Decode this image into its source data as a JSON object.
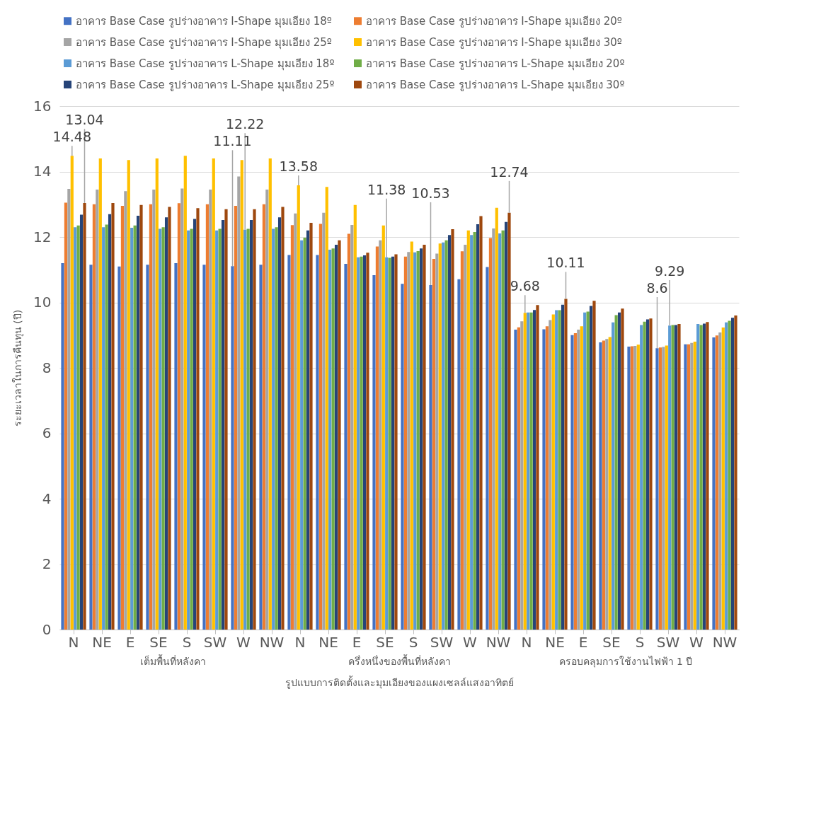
{
  "chart_data": {
    "type": "bar",
    "ylabel": "ระยะเวลาในการคืนทุน (ปี)",
    "xlabel": "รูปแบบการติดตั้งและมุมเอียงของแผงเซลล์แสงอาทิตย์",
    "annotations": [
      "เต็มพื้นที่หลังคา",
      "ครึ่งหนึ่งของพื้นที่หลังคา",
      "ครอบคลุมการใช้งานไฟฟ้า 1 ปี"
    ],
    "categories": [
      "N",
      "NE",
      "E",
      "SE",
      "S",
      "SW",
      "W",
      "NW",
      "N",
      "NE",
      "E",
      "SE",
      "S",
      "SW",
      "W",
      "NW",
      "N",
      "NE",
      "E",
      "SE",
      "S",
      "SW",
      "W",
      "NW"
    ],
    "ylim": [
      0,
      16
    ],
    "yticks": [
      0,
      2,
      4,
      6,
      8,
      10,
      12,
      14,
      16
    ],
    "grid": "y",
    "legend": "top",
    "series": [
      {
        "name": "อาคาร Base Case  รูปร่างอาคาร I-Shape มุมเอียง 18º",
        "color": "#4472c4",
        "values": [
          11.2,
          11.15,
          11.1,
          11.15,
          11.2,
          11.15,
          11.11,
          11.15,
          11.45,
          11.45,
          11.18,
          10.83,
          10.57,
          10.53,
          10.71,
          11.08,
          9.17,
          9.18,
          9.0,
          8.78,
          8.65,
          8.6,
          8.72,
          8.93
        ],
        "value_labels": [
          null,
          null,
          null,
          null,
          null,
          null,
          "11.11",
          null,
          null,
          null,
          null,
          null,
          null,
          "10.53",
          null,
          null,
          null,
          null,
          null,
          null,
          null,
          "8.6",
          null,
          null
        ]
      },
      {
        "name": "อาคาร Base Case  รูปร่างอาคาร I-Shape มุมเอียง 20º",
        "color": "#ed7d31",
        "values": [
          13.05,
          13.0,
          12.95,
          13.0,
          13.03,
          13.0,
          12.95,
          13.0,
          12.36,
          12.4,
          12.1,
          11.71,
          11.4,
          11.33,
          11.56,
          11.97,
          9.24,
          9.27,
          9.06,
          8.83,
          8.66,
          8.62,
          8.72,
          8.99
        ]
      },
      {
        "name": "อาคาร Base Case  รูปร่างอาคาร I-Shape มุมเอียง 25º",
        "color": "#a5a5a5",
        "values": [
          13.47,
          13.45,
          13.4,
          13.45,
          13.48,
          13.45,
          13.85,
          13.45,
          12.72,
          12.74,
          12.37,
          11.9,
          11.54,
          11.49,
          11.76,
          12.26,
          9.42,
          9.46,
          9.17,
          8.88,
          8.67,
          8.64,
          8.76,
          9.08
        ]
      },
      {
        "name": "อาคาร Base Case  รูปร่างอาคาร I-Shape มุมเอียง 30º",
        "color": "#ffc000",
        "values": [
          14.48,
          14.4,
          14.35,
          14.4,
          14.48,
          14.4,
          14.35,
          14.4,
          13.58,
          13.53,
          12.98,
          12.35,
          11.86,
          11.8,
          12.2,
          12.89,
          9.68,
          9.63,
          9.27,
          8.94,
          8.71,
          8.68,
          8.8,
          9.23
        ],
        "value_labels": [
          "14.48",
          null,
          null,
          null,
          null,
          null,
          null,
          null,
          "13.58",
          null,
          null,
          null,
          null,
          null,
          null,
          null,
          "9.68",
          null,
          null,
          null,
          null,
          null,
          null,
          null
        ]
      },
      {
        "name": "อาคาร Base Case  รูปร่างอาคาร L-Shape มุมเอียง 18º",
        "color": "#5b9bd5",
        "values": [
          12.3,
          12.3,
          12.28,
          12.25,
          12.2,
          12.2,
          12.22,
          12.25,
          11.9,
          11.61,
          11.38,
          11.38,
          11.53,
          11.83,
          12.06,
          12.11,
          9.69,
          9.76,
          9.69,
          9.39,
          9.31,
          9.29,
          9.34,
          9.39
        ],
        "value_labels": [
          null,
          null,
          null,
          null,
          null,
          null,
          "12.22",
          null,
          null,
          null,
          null,
          "11.38",
          null,
          null,
          null,
          null,
          null,
          null,
          null,
          null,
          null,
          "9.29",
          null,
          null
        ]
      },
      {
        "name": "อาคาร Base Case  รูปร่างอาคาร L-Shape มุมเอียง 20º",
        "color": "#70ad47",
        "values": [
          12.35,
          12.38,
          12.35,
          12.3,
          12.25,
          12.25,
          12.25,
          12.3,
          11.98,
          11.65,
          11.4,
          11.36,
          11.57,
          11.9,
          12.15,
          12.2,
          9.69,
          9.76,
          9.72,
          9.61,
          9.41,
          9.31,
          9.31,
          9.44
        ]
      },
      {
        "name": "อาคาร Base Case  รูปร่างอาคาร L-Shape มุมเอียง 25º",
        "color": "#264478",
        "values": [
          12.68,
          12.7,
          12.65,
          12.6,
          12.55,
          12.52,
          12.52,
          12.6,
          12.2,
          11.76,
          11.44,
          11.4,
          11.65,
          12.06,
          12.39,
          12.46,
          9.77,
          9.93,
          9.89,
          9.69,
          9.48,
          9.31,
          9.35,
          9.53
        ]
      },
      {
        "name": "อาคาร Base Case  รูปร่างอาคาร L-Shape มุมเอียง 30º",
        "color": "#9e480e",
        "values": [
          13.04,
          13.04,
          12.98,
          12.92,
          12.88,
          12.85,
          12.85,
          12.92,
          12.43,
          11.9,
          11.52,
          11.47,
          11.76,
          12.24,
          12.64,
          12.74,
          9.92,
          10.11,
          10.05,
          9.81,
          9.51,
          9.34,
          9.4,
          9.6
        ],
        "value_labels": [
          "13.04",
          null,
          null,
          null,
          null,
          null,
          null,
          null,
          null,
          null,
          null,
          null,
          null,
          null,
          null,
          "12.74",
          null,
          "10.11",
          null,
          null,
          null,
          null,
          null,
          null
        ]
      }
    ]
  }
}
